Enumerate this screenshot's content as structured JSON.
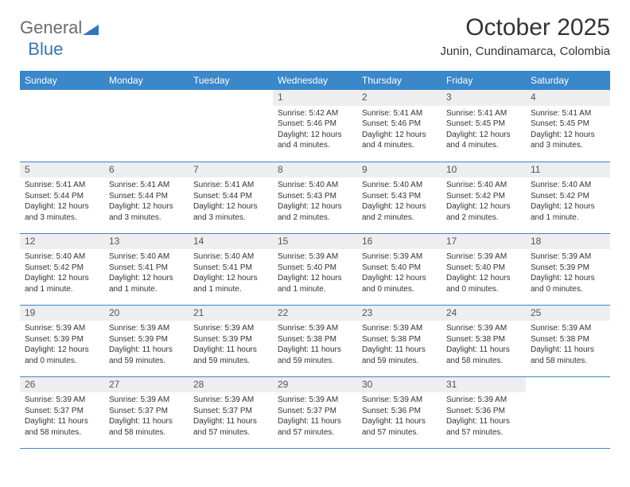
{
  "colors": {
    "header_bg": "#3a87c9",
    "header_text": "#ffffff",
    "daynum_bg": "#eceef0",
    "row_divider": "#3a87c9",
    "body_text": "#333333",
    "logo_gray": "#6b6b6b",
    "logo_blue": "#2f78bf"
  },
  "logo": {
    "word1": "General",
    "word2": "Blue"
  },
  "title": "October 2025",
  "subtitle": "Junin, Cundinamarca, Colombia",
  "weekdays": [
    "Sunday",
    "Monday",
    "Tuesday",
    "Wednesday",
    "Thursday",
    "Friday",
    "Saturday"
  ],
  "cells": [
    {
      "d": "",
      "rise": "",
      "set": "",
      "day": ""
    },
    {
      "d": "",
      "rise": "",
      "set": "",
      "day": ""
    },
    {
      "d": "",
      "rise": "",
      "set": "",
      "day": ""
    },
    {
      "d": "1",
      "rise": "Sunrise: 5:42 AM",
      "set": "Sunset: 5:46 PM",
      "day": "Daylight: 12 hours and 4 minutes."
    },
    {
      "d": "2",
      "rise": "Sunrise: 5:41 AM",
      "set": "Sunset: 5:46 PM",
      "day": "Daylight: 12 hours and 4 minutes."
    },
    {
      "d": "3",
      "rise": "Sunrise: 5:41 AM",
      "set": "Sunset: 5:45 PM",
      "day": "Daylight: 12 hours and 4 minutes."
    },
    {
      "d": "4",
      "rise": "Sunrise: 5:41 AM",
      "set": "Sunset: 5:45 PM",
      "day": "Daylight: 12 hours and 3 minutes."
    },
    {
      "d": "5",
      "rise": "Sunrise: 5:41 AM",
      "set": "Sunset: 5:44 PM",
      "day": "Daylight: 12 hours and 3 minutes."
    },
    {
      "d": "6",
      "rise": "Sunrise: 5:41 AM",
      "set": "Sunset: 5:44 PM",
      "day": "Daylight: 12 hours and 3 minutes."
    },
    {
      "d": "7",
      "rise": "Sunrise: 5:41 AM",
      "set": "Sunset: 5:44 PM",
      "day": "Daylight: 12 hours and 3 minutes."
    },
    {
      "d": "8",
      "rise": "Sunrise: 5:40 AM",
      "set": "Sunset: 5:43 PM",
      "day": "Daylight: 12 hours and 2 minutes."
    },
    {
      "d": "9",
      "rise": "Sunrise: 5:40 AM",
      "set": "Sunset: 5:43 PM",
      "day": "Daylight: 12 hours and 2 minutes."
    },
    {
      "d": "10",
      "rise": "Sunrise: 5:40 AM",
      "set": "Sunset: 5:42 PM",
      "day": "Daylight: 12 hours and 2 minutes."
    },
    {
      "d": "11",
      "rise": "Sunrise: 5:40 AM",
      "set": "Sunset: 5:42 PM",
      "day": "Daylight: 12 hours and 1 minute."
    },
    {
      "d": "12",
      "rise": "Sunrise: 5:40 AM",
      "set": "Sunset: 5:42 PM",
      "day": "Daylight: 12 hours and 1 minute."
    },
    {
      "d": "13",
      "rise": "Sunrise: 5:40 AM",
      "set": "Sunset: 5:41 PM",
      "day": "Daylight: 12 hours and 1 minute."
    },
    {
      "d": "14",
      "rise": "Sunrise: 5:40 AM",
      "set": "Sunset: 5:41 PM",
      "day": "Daylight: 12 hours and 1 minute."
    },
    {
      "d": "15",
      "rise": "Sunrise: 5:39 AM",
      "set": "Sunset: 5:40 PM",
      "day": "Daylight: 12 hours and 1 minute."
    },
    {
      "d": "16",
      "rise": "Sunrise: 5:39 AM",
      "set": "Sunset: 5:40 PM",
      "day": "Daylight: 12 hours and 0 minutes."
    },
    {
      "d": "17",
      "rise": "Sunrise: 5:39 AM",
      "set": "Sunset: 5:40 PM",
      "day": "Daylight: 12 hours and 0 minutes."
    },
    {
      "d": "18",
      "rise": "Sunrise: 5:39 AM",
      "set": "Sunset: 5:39 PM",
      "day": "Daylight: 12 hours and 0 minutes."
    },
    {
      "d": "19",
      "rise": "Sunrise: 5:39 AM",
      "set": "Sunset: 5:39 PM",
      "day": "Daylight: 12 hours and 0 minutes."
    },
    {
      "d": "20",
      "rise": "Sunrise: 5:39 AM",
      "set": "Sunset: 5:39 PM",
      "day": "Daylight: 11 hours and 59 minutes."
    },
    {
      "d": "21",
      "rise": "Sunrise: 5:39 AM",
      "set": "Sunset: 5:39 PM",
      "day": "Daylight: 11 hours and 59 minutes."
    },
    {
      "d": "22",
      "rise": "Sunrise: 5:39 AM",
      "set": "Sunset: 5:38 PM",
      "day": "Daylight: 11 hours and 59 minutes."
    },
    {
      "d": "23",
      "rise": "Sunrise: 5:39 AM",
      "set": "Sunset: 5:38 PM",
      "day": "Daylight: 11 hours and 59 minutes."
    },
    {
      "d": "24",
      "rise": "Sunrise: 5:39 AM",
      "set": "Sunset: 5:38 PM",
      "day": "Daylight: 11 hours and 58 minutes."
    },
    {
      "d": "25",
      "rise": "Sunrise: 5:39 AM",
      "set": "Sunset: 5:38 PM",
      "day": "Daylight: 11 hours and 58 minutes."
    },
    {
      "d": "26",
      "rise": "Sunrise: 5:39 AM",
      "set": "Sunset: 5:37 PM",
      "day": "Daylight: 11 hours and 58 minutes."
    },
    {
      "d": "27",
      "rise": "Sunrise: 5:39 AM",
      "set": "Sunset: 5:37 PM",
      "day": "Daylight: 11 hours and 58 minutes."
    },
    {
      "d": "28",
      "rise": "Sunrise: 5:39 AM",
      "set": "Sunset: 5:37 PM",
      "day": "Daylight: 11 hours and 57 minutes."
    },
    {
      "d": "29",
      "rise": "Sunrise: 5:39 AM",
      "set": "Sunset: 5:37 PM",
      "day": "Daylight: 11 hours and 57 minutes."
    },
    {
      "d": "30",
      "rise": "Sunrise: 5:39 AM",
      "set": "Sunset: 5:36 PM",
      "day": "Daylight: 11 hours and 57 minutes."
    },
    {
      "d": "31",
      "rise": "Sunrise: 5:39 AM",
      "set": "Sunset: 5:36 PM",
      "day": "Daylight: 11 hours and 57 minutes."
    },
    {
      "d": "",
      "rise": "",
      "set": "",
      "day": ""
    }
  ]
}
